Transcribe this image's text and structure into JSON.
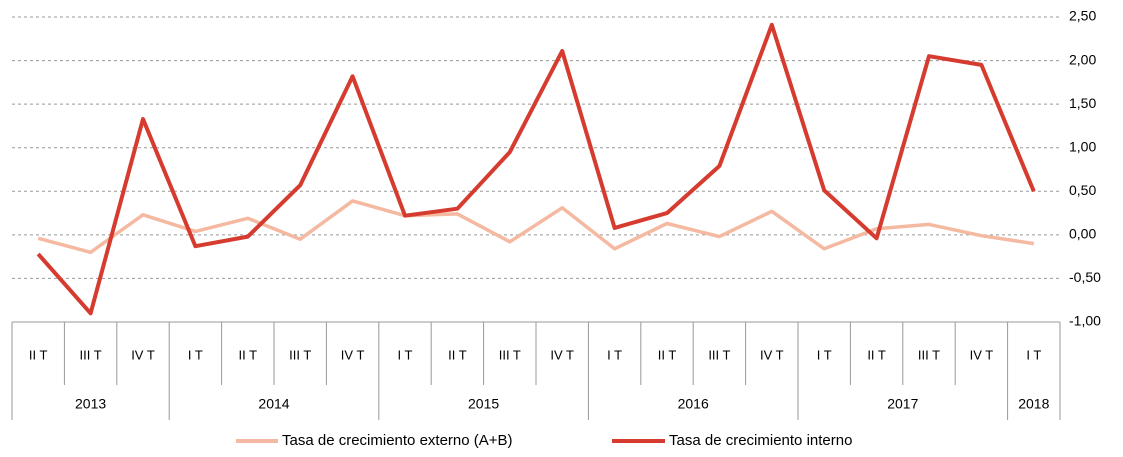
{
  "chart_data": {
    "type": "line",
    "categories": [
      "II T",
      "III T",
      "IV T",
      "I T",
      "II T",
      "III T",
      "IV T",
      "I T",
      "II T",
      "III T",
      "IV T",
      "I T",
      "II T",
      "III T",
      "IV T",
      "I T",
      "II T",
      "III T",
      "IV T",
      "I T"
    ],
    "groups": [
      {
        "name": "2013",
        "count": 3
      },
      {
        "name": "2014",
        "count": 4
      },
      {
        "name": "2015",
        "count": 4
      },
      {
        "name": "2016",
        "count": 4
      },
      {
        "name": "2017",
        "count": 4
      },
      {
        "name": "2018",
        "count": 1
      }
    ],
    "series": [
      {
        "name": "Tasa de crecimiento externo (A+B)",
        "color": "#f4b9a0",
        "values": [
          -0.04,
          -0.2,
          0.23,
          0.04,
          0.19,
          -0.05,
          0.39,
          0.22,
          0.24,
          -0.08,
          0.31,
          -0.16,
          0.13,
          -0.02,
          0.27,
          -0.16,
          0.07,
          0.12,
          -0.01,
          -0.1
        ]
      },
      {
        "name": "Tasa de crecimiento interno",
        "color": "#d63b2f",
        "values": [
          -0.22,
          -0.9,
          1.33,
          -0.13,
          -0.02,
          0.57,
          1.82,
          0.22,
          0.3,
          0.95,
          2.11,
          0.08,
          0.25,
          0.79,
          2.41,
          0.51,
          -0.04,
          2.05,
          1.95,
          0.5
        ]
      }
    ],
    "ylim": [
      -1,
      2.5
    ],
    "yticks": [
      {
        "value": -1,
        "label": "-1,00"
      },
      {
        "value": -0.5,
        "label": "-0,50"
      },
      {
        "value": 0,
        "label": "0,00"
      },
      {
        "value": 0.5,
        "label": "0,50"
      },
      {
        "value": 1,
        "label": "1,00"
      },
      {
        "value": 1.5,
        "label": "1,50"
      },
      {
        "value": 2,
        "label": "2,00"
      },
      {
        "value": 2.5,
        "label": "2,50"
      }
    ],
    "grid": true
  }
}
